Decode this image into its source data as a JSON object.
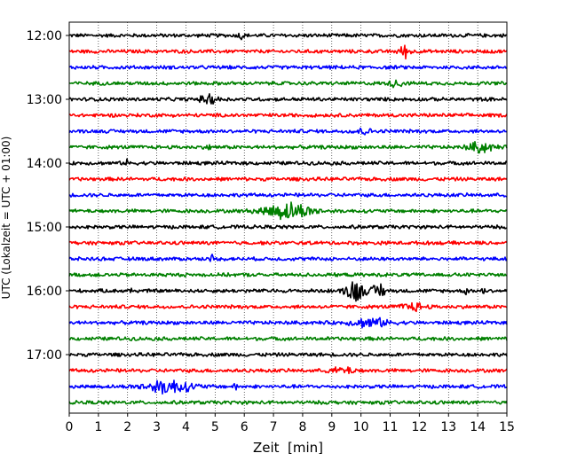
{
  "chart_data": {
    "type": "line",
    "subtype": "helicorder-seismogram",
    "xlabel": "Zeit  [min]",
    "ylabel": "UTC (Lokalzeit = UTC + 01:00)",
    "xlim": [
      0,
      15
    ],
    "x_ticks": [
      0,
      1,
      2,
      3,
      4,
      5,
      6,
      7,
      8,
      9,
      10,
      11,
      12,
      13,
      14,
      15
    ],
    "y_tick_labels": [
      "12:00",
      "13:00",
      "14:00",
      "15:00",
      "16:00",
      "17:00"
    ],
    "grid": "vertical dotted lines at each minute",
    "legend": "none",
    "trace_colors": [
      "#000000",
      "#ff0000",
      "#0000ff",
      "#008000"
    ],
    "color_cycle": "black, red, blue, green (repeating per 15-minute row)",
    "rows": [
      {
        "start": "12:00",
        "color": "#000000",
        "amplitude": 0.25,
        "events": [
          {
            "x": 5.9,
            "amp": 0.5,
            "width": 0.1
          }
        ]
      },
      {
        "start": "12:15",
        "color": "#ff0000",
        "amplitude": 0.25,
        "events": [
          {
            "x": 11.5,
            "amp": 0.8,
            "width": 0.2
          }
        ]
      },
      {
        "start": "12:30",
        "color": "#0000ff",
        "amplitude": 0.25,
        "events": []
      },
      {
        "start": "12:45",
        "color": "#008000",
        "amplitude": 0.25,
        "events": [
          {
            "x": 11.2,
            "amp": 0.5,
            "width": 0.2
          }
        ]
      },
      {
        "start": "13:00",
        "color": "#000000",
        "amplitude": 0.25,
        "events": [
          {
            "x": 4.8,
            "amp": 0.6,
            "width": 0.3
          }
        ]
      },
      {
        "start": "13:15",
        "color": "#ff0000",
        "amplitude": 0.25,
        "events": []
      },
      {
        "start": "13:30",
        "color": "#0000ff",
        "amplitude": 0.25,
        "events": [
          {
            "x": 10,
            "amp": 0.4,
            "width": 0.3
          }
        ]
      },
      {
        "start": "13:45",
        "color": "#008000",
        "amplitude": 0.25,
        "events": [
          {
            "x": 14.1,
            "amp": 0.7,
            "width": 0.4
          },
          {
            "x": 4.8,
            "amp": 0.5,
            "width": 0.05
          }
        ]
      },
      {
        "start": "14:00",
        "color": "#000000",
        "amplitude": 0.25,
        "events": [
          {
            "x": 2,
            "amp": 0.5,
            "width": 0.05
          }
        ]
      },
      {
        "start": "14:15",
        "color": "#ff0000",
        "amplitude": 0.25,
        "events": []
      },
      {
        "start": "14:30",
        "color": "#0000ff",
        "amplitude": 0.25,
        "events": []
      },
      {
        "start": "14:45",
        "color": "#008000",
        "amplitude": 0.25,
        "events": [
          {
            "x": 7.5,
            "amp": 1.1,
            "width": 0.8
          }
        ]
      },
      {
        "start": "15:00",
        "color": "#000000",
        "amplitude": 0.25,
        "events": []
      },
      {
        "start": "15:15",
        "color": "#ff0000",
        "amplitude": 0.25,
        "events": []
      },
      {
        "start": "15:30",
        "color": "#0000ff",
        "amplitude": 0.25,
        "events": [
          {
            "x": 4.9,
            "amp": 0.5,
            "width": 0.05
          }
        ]
      },
      {
        "start": "15:45",
        "color": "#008000",
        "amplitude": 0.25,
        "events": []
      },
      {
        "start": "16:00",
        "color": "#000000",
        "amplitude": 0.25,
        "events": [
          {
            "x": 9.8,
            "amp": 1.6,
            "width": 0.3
          },
          {
            "x": 10.6,
            "amp": 1.1,
            "width": 0.2
          },
          {
            "x": 2.1,
            "amp": 0.5,
            "width": 0.05
          },
          {
            "x": 13.6,
            "amp": 0.6,
            "width": 0.05
          },
          {
            "x": 14.2,
            "amp": 0.5,
            "width": 0.05
          }
        ]
      },
      {
        "start": "16:15",
        "color": "#ff0000",
        "amplitude": 0.25,
        "events": [
          {
            "x": 11.8,
            "amp": 0.5,
            "width": 0.4
          }
        ]
      },
      {
        "start": "16:30",
        "color": "#0000ff",
        "amplitude": 0.25,
        "events": [
          {
            "x": 10.3,
            "amp": 0.6,
            "width": 0.6
          }
        ]
      },
      {
        "start": "16:45",
        "color": "#008000",
        "amplitude": 0.25,
        "events": []
      },
      {
        "start": "17:00",
        "color": "#000000",
        "amplitude": 0.25,
        "events": []
      },
      {
        "start": "17:15",
        "color": "#ff0000",
        "amplitude": 0.25,
        "events": [
          {
            "x": 9.4,
            "amp": 0.4,
            "width": 0.4
          }
        ]
      },
      {
        "start": "17:30",
        "color": "#0000ff",
        "amplitude": 0.25,
        "events": [
          {
            "x": 3.4,
            "amp": 0.9,
            "width": 0.8
          },
          {
            "x": 5.7,
            "amp": 0.5,
            "width": 0.05
          }
        ]
      },
      {
        "start": "17:45",
        "color": "#008000",
        "amplitude": 0.25,
        "events": []
      }
    ]
  }
}
